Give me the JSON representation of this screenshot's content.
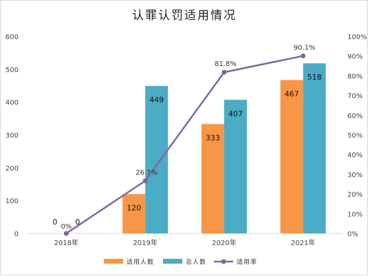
{
  "chart_data": {
    "type": "bar",
    "title": "认罪认罚适用情况",
    "categories": [
      "2018年",
      "2019年",
      "2020年",
      "2021年"
    ],
    "series": [
      {
        "name": "适用人数",
        "type": "bar",
        "axis": "left",
        "color": "#f79646",
        "values": [
          0,
          120,
          333,
          467
        ]
      },
      {
        "name": "总人数",
        "type": "bar",
        "axis": "left",
        "color": "#4bacc6",
        "values": [
          0,
          449,
          407,
          518
        ]
      },
      {
        "name": "适用率",
        "type": "line",
        "axis": "right",
        "color": "#8064a2",
        "values": [
          0,
          26.7,
          81.8,
          90.1
        ]
      }
    ],
    "bar_value_labels": [
      [
        "0",
        "120",
        "333",
        "467"
      ],
      [
        "0",
        "449",
        "407",
        "518"
      ]
    ],
    "line_value_labels": [
      "0%",
      "26.7%",
      "81.8%",
      "90.1%"
    ],
    "y_left": {
      "min": 0,
      "max": 600,
      "ticks": [
        "0",
        "100",
        "200",
        "300",
        "400",
        "500",
        "600"
      ]
    },
    "y_right": {
      "min": 0,
      "max": 100,
      "ticks": [
        "0%",
        "10%",
        "20%",
        "30%",
        "40%",
        "50%",
        "60%",
        "70%",
        "80%",
        "90%",
        "100%"
      ]
    },
    "grid": false,
    "legend": "bottom"
  }
}
